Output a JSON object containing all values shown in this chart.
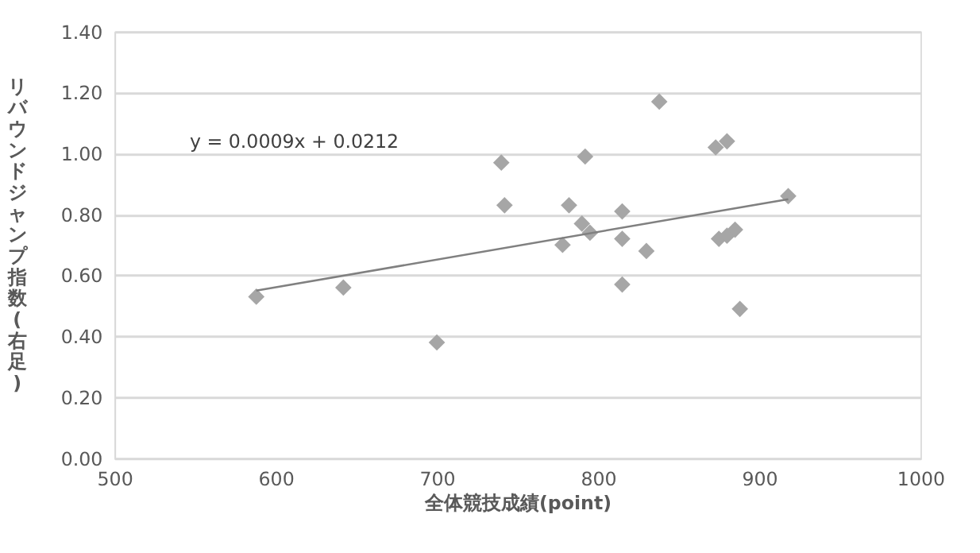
{
  "chart_data": {
    "type": "scatter",
    "xlabel": "全体競技成績(point)",
    "ylabel": "リバウンドジャンプ指数(右足)",
    "xlim": [
      500,
      1000
    ],
    "xticks": [
      500,
      600,
      700,
      800,
      900,
      {
        "value": 1000,
        "label": "1000"
      }
    ],
    "ylim": [
      0,
      1.4
    ],
    "yticks": [
      {
        "value": 0,
        "label": "0.00"
      },
      {
        "value": 0.2,
        "label": "0.20"
      },
      {
        "value": 0.4,
        "label": "0.40"
      },
      {
        "value": 0.6,
        "label": "0.60"
      },
      {
        "value": 0.8,
        "label": "0.80"
      },
      {
        "value": 1.0,
        "label": "1.00"
      },
      {
        "value": 1.2,
        "label": "1.20"
      },
      {
        "value": 1.4,
        "label": "1.40"
      }
    ],
    "grid": "y",
    "annotations": [
      "y = 0.0009x + 0.0212"
    ],
    "series": [
      {
        "marker": "diamond",
        "color": "#a6a6a6",
        "x": [
          588,
          642,
          700,
          740,
          742,
          778,
          782,
          790,
          792,
          795,
          815,
          815,
          815,
          830,
          838,
          873,
          880,
          875,
          880,
          885,
          888,
          918
        ],
        "values": [
          0.53,
          0.56,
          0.38,
          0.97,
          0.83,
          0.7,
          0.83,
          0.77,
          0.99,
          0.74,
          0.81,
          0.72,
          0.57,
          0.68,
          1.17,
          1.02,
          1.04,
          0.72,
          0.73,
          0.75,
          0.49,
          0.86
        ]
      },
      {
        "type": "line",
        "marker": "none",
        "line_style": "solid",
        "color": "#808080",
        "x": [
          588,
          918
        ],
        "values": [
          0.55,
          0.85
        ]
      }
    ]
  }
}
